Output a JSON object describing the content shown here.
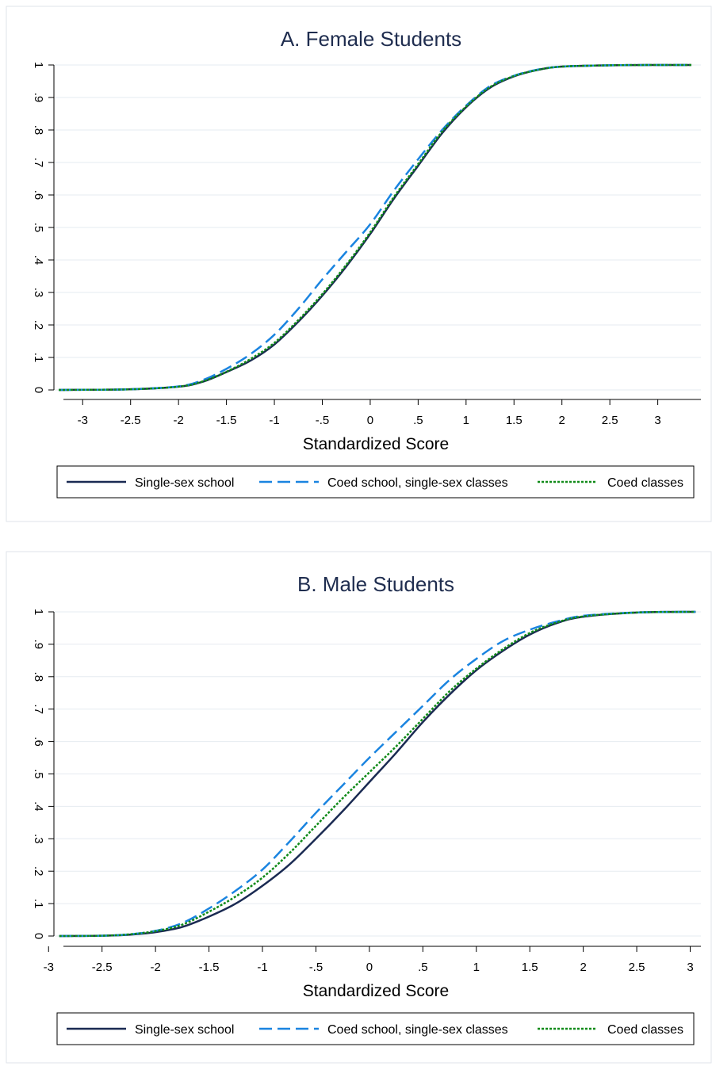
{
  "colors": {
    "single_sex_school": "#1a2a52",
    "coed_single_sex_classes": "#1a84e0",
    "coed_classes": "#108a18",
    "title": "#1f2d4f",
    "grid": "#e6ebf1"
  },
  "legend": {
    "position": "bottom",
    "items": [
      "Single-sex school",
      "Coed school, single-sex classes",
      "Coed classes"
    ]
  },
  "chart_data": [
    {
      "type": "line",
      "title": "A. Female Students",
      "xlabel": "Standardized Score",
      "ylabel": "",
      "xlim": [
        -3.3,
        3.45
      ],
      "ylim": [
        0,
        1
      ],
      "grid": true,
      "x_ticks": [
        -3,
        -2.5,
        -2,
        -1.5,
        -1,
        -0.5,
        0,
        0.5,
        1,
        1.5,
        2,
        2.5,
        3
      ],
      "x_tick_labels": [
        "-3",
        "-2.5",
        "-2",
        "-1.5",
        "-1",
        "-.5",
        "0",
        ".5",
        "1",
        "1.5",
        "2",
        "2.5",
        "3"
      ],
      "y_ticks": [
        0,
        0.1,
        0.2,
        0.3,
        0.4,
        0.5,
        0.6,
        0.7,
        0.8,
        0.9,
        1
      ],
      "y_tick_labels": [
        "0",
        ".1",
        ".2",
        ".3",
        ".4",
        ".5",
        ".6",
        ".7",
        ".8",
        ".9",
        "1"
      ],
      "x": [
        -3.25,
        -3.0,
        -2.5,
        -2.0,
        -1.75,
        -1.5,
        -1.25,
        -1.0,
        -0.75,
        -0.5,
        -0.25,
        0.0,
        0.25,
        0.5,
        0.75,
        1.0,
        1.25,
        1.5,
        1.75,
        2.0,
        2.5,
        3.0,
        3.35
      ],
      "series": [
        {
          "name": "Single-sex school",
          "style": "solid",
          "values": [
            0.0,
            0.0005,
            0.002,
            0.01,
            0.025,
            0.055,
            0.09,
            0.14,
            0.21,
            0.29,
            0.38,
            0.48,
            0.59,
            0.69,
            0.79,
            0.87,
            0.93,
            0.965,
            0.985,
            0.995,
            0.999,
            1.0,
            1.0
          ]
        },
        {
          "name": "Coed school, single-sex classes",
          "style": "dash",
          "values": [
            0.0,
            0.0005,
            0.002,
            0.011,
            0.03,
            0.065,
            0.11,
            0.17,
            0.25,
            0.34,
            0.425,
            0.51,
            0.615,
            0.71,
            0.8,
            0.875,
            0.935,
            0.967,
            0.986,
            0.995,
            0.999,
            1.0,
            1.0
          ]
        },
        {
          "name": "Coed classes",
          "style": "dot",
          "values": [
            0.0,
            0.0005,
            0.002,
            0.01,
            0.026,
            0.056,
            0.095,
            0.145,
            0.215,
            0.295,
            0.385,
            0.485,
            0.595,
            0.695,
            0.795,
            0.872,
            0.932,
            0.966,
            0.985,
            0.995,
            0.999,
            1.0,
            1.0
          ]
        }
      ]
    },
    {
      "type": "line",
      "title": "B. Male Students",
      "xlabel": "Standardized Score",
      "ylabel": "",
      "xlim": [
        -2.95,
        3.1
      ],
      "ylim": [
        0,
        1
      ],
      "grid": true,
      "x_ticks": [
        -3,
        -2.5,
        -2,
        -1.5,
        -1,
        -0.5,
        0,
        0.5,
        1,
        1.5,
        2,
        2.5,
        3
      ],
      "x_tick_labels": [
        "-3",
        "-2.5",
        "-2",
        "-1.5",
        "-1",
        "-.5",
        "0",
        ".5",
        "1",
        "1.5",
        "2",
        "2.5",
        "3"
      ],
      "y_ticks": [
        0,
        0.1,
        0.2,
        0.3,
        0.4,
        0.5,
        0.6,
        0.7,
        0.8,
        0.9,
        1
      ],
      "y_tick_labels": [
        "0",
        ".1",
        ".2",
        ".3",
        ".4",
        ".5",
        ".6",
        ".7",
        ".8",
        ".9",
        "1"
      ],
      "x": [
        -2.9,
        -2.5,
        -2.25,
        -2.0,
        -1.75,
        -1.5,
        -1.25,
        -1.0,
        -0.75,
        -0.5,
        -0.25,
        0.0,
        0.25,
        0.5,
        0.75,
        1.0,
        1.25,
        1.5,
        1.75,
        2.0,
        2.5,
        3.05
      ],
      "series": [
        {
          "name": "Single-sex school",
          "style": "solid",
          "values": [
            0.0,
            0.001,
            0.004,
            0.012,
            0.028,
            0.06,
            0.1,
            0.155,
            0.22,
            0.3,
            0.385,
            0.475,
            0.565,
            0.66,
            0.745,
            0.82,
            0.88,
            0.93,
            0.965,
            0.985,
            0.998,
            1.0
          ]
        },
        {
          "name": "Coed school, single-sex classes",
          "style": "dash",
          "values": [
            0.0,
            0.001,
            0.005,
            0.016,
            0.04,
            0.085,
            0.14,
            0.205,
            0.29,
            0.38,
            0.465,
            0.55,
            0.63,
            0.71,
            0.79,
            0.855,
            0.91,
            0.945,
            0.97,
            0.988,
            0.998,
            1.0
          ]
        },
        {
          "name": "Coed classes",
          "style": "dot",
          "values": [
            0.0,
            0.001,
            0.005,
            0.015,
            0.035,
            0.075,
            0.122,
            0.18,
            0.255,
            0.34,
            0.425,
            0.505,
            0.585,
            0.67,
            0.755,
            0.825,
            0.885,
            0.935,
            0.967,
            0.986,
            0.998,
            1.0
          ]
        }
      ]
    }
  ]
}
